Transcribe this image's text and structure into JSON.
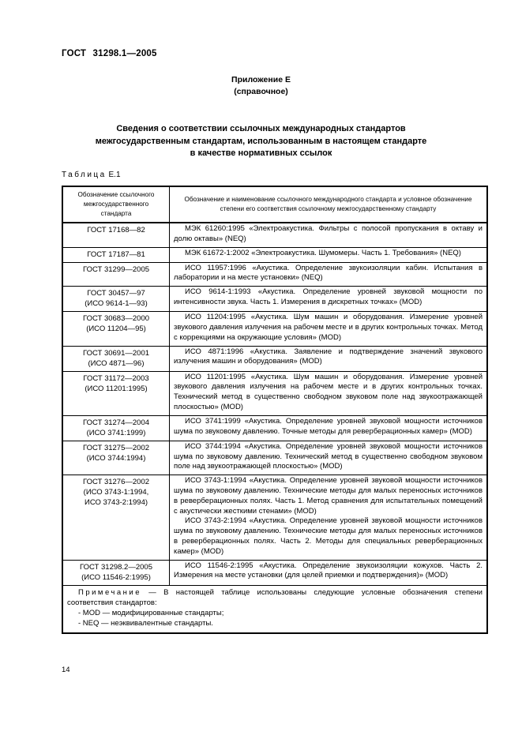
{
  "header": {
    "doc_number": "ГОСТ 31298.1—2005",
    "appendix": "Приложение Е",
    "appendix_type": "(справочное)",
    "title_lines": [
      "Сведения о соответствии ссылочных международных стандартов",
      "межгосударственным стандартам, использованным в настоящем стандарте",
      "в качестве нормативных ссылок"
    ]
  },
  "table": {
    "label_word": "Таблица",
    "label_number": "Е.1",
    "col1_header": "Обозначение ссылочного межгосударственного стандарта",
    "col2_header": "Обозначение и наименование ссылочного международного стандарта и условное обозначение степени его соответствия ссылочному межгосударственному стандарту",
    "rows": [
      {
        "col1": [
          "ГОСТ 17168—82"
        ],
        "col2": [
          "МЭК 61260:1995 «Электроакустика. Фильтры с полосой пропускания в октаву и долю октавы» (NEQ)"
        ]
      },
      {
        "col1": [
          "ГОСТ 17187—81"
        ],
        "col2": [
          "МЭК 61672-1:2002 «Электроакустика. Шумомеры. Часть 1. Требования» (NEQ)"
        ]
      },
      {
        "col1": [
          "ГОСТ 31299—2005"
        ],
        "col2": [
          "ИСО 11957:1996 «Акустика. Определение звукоизоляции кабин. Испытания в лаборатории и на месте установки» (NEQ)"
        ]
      },
      {
        "col1": [
          "ГОСТ 30457—97",
          "(ИСО 9614-1—93)"
        ],
        "col2": [
          "ИСО 9614-1:1993 «Акустика. Определение уровней звуковой мощности по интенсивности звука. Часть 1. Измерения в дискретных точках» (MOD)"
        ]
      },
      {
        "col1": [
          "ГОСТ 30683—2000",
          "(ИСО 11204—95)"
        ],
        "col2": [
          "ИСО 11204:1995 «Акустика. Шум машин и оборудования. Измерение уровней звукового давления излучения на рабочем месте и в других контрольных точках. Метод с коррекциями на окружающие условия» (MOD)"
        ]
      },
      {
        "col1": [
          "ГОСТ 30691—2001",
          "(ИСО 4871—96)"
        ],
        "col2": [
          "ИСО 4871:1996 «Акустика. Заявление и подтверждение значений звукового излучения машин и оборудования» (MOD)"
        ]
      },
      {
        "col1": [
          "ГОСТ 31172—2003",
          "(ИСО 11201:1995)"
        ],
        "col2": [
          "ИСО 11201:1995 «Акустика. Шум машин и оборудования. Измерение уровней звукового давления излучения на рабочем месте и в других контрольных точках. Технический метод в существенно свободном звуковом поле над звукоотражающей плоскостью» (MOD)"
        ]
      },
      {
        "col1": [
          "ГОСТ 31274—2004",
          "(ИСО 3741:1999)"
        ],
        "col2": [
          "ИСО 3741:1999 «Акустика. Определение уровней звуковой мощности источников шума по звуковому давлению. Точные методы для реверберационных камер» (MOD)"
        ]
      },
      {
        "col1": [
          "ГОСТ 31275—2002",
          "(ИСО 3744:1994)"
        ],
        "col2": [
          "ИСО 3744:1994 «Акустика. Определение уровней звуковой мощности источников шума по звуковому давлению. Технический метод в существенно свободном звуковом поле над звукоотражающей плоскостью» (MOD)"
        ]
      },
      {
        "col1": [
          "ГОСТ 31276—2002",
          "(ИСО 3743-1:1994,",
          "ИСО 3743-2:1994)"
        ],
        "col2": [
          "ИСО 3743-1:1994 «Акустика. Определение уровней звуковой мощности источников шума по звуковому давлению. Технические методы для малых переносных источников в реверберационных полях. Часть 1. Метод сравнения для испытательных помещений с акустически жесткими стенами» (MOD)",
          "ИСО 3743-2:1994 «Акустика. Определение уровней звуковой мощности источников шума по звуковому давлению. Технические методы для малых переносных источников в реверберационных полях. Часть 2. Методы для специальных реверберационных камер» (MOD)"
        ]
      },
      {
        "col1": [
          "ГОСТ 31298.2—2005",
          "(ИСО 11546-2:1995)"
        ],
        "col2": [
          "ИСО 11546-2:1995 «Акустика. Определение звукоизоляции кожухов. Часть 2. Измерения на месте установки (для целей приемки и подтверждения)» (MOD)"
        ]
      }
    ],
    "note": {
      "label": "Примечание",
      "text": " — В настоящей таблице использованы следующие условные обозначения степени соответствия стандартов:",
      "items": [
        "- MOD — модифицированные стандарты;",
        "- NEQ — неэквивалентные стандарты."
      ]
    }
  },
  "footer": {
    "page_number": "14"
  }
}
